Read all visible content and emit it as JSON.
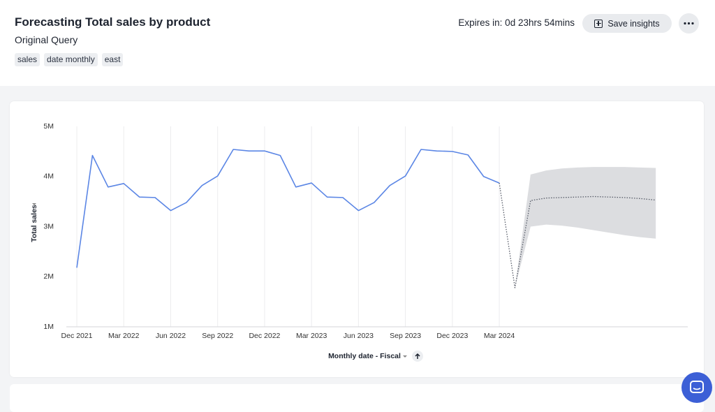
{
  "header": {
    "title": "Forecasting Total sales by product",
    "subtitle": "Original Query",
    "chips": [
      "sales",
      "date monthly",
      "east"
    ],
    "expires": "Expires in: 0d 23hrs 54mins",
    "save_button": "Save insights"
  },
  "chart_data": {
    "type": "line",
    "ylabel": "Total sales",
    "xlabel": "Monthly date - Fiscal",
    "categories": [
      "Dec 2021",
      null,
      null,
      "Mar 2022",
      null,
      null,
      "Jun 2022",
      null,
      null,
      "Sep 2022",
      null,
      null,
      "Dec 2022",
      null,
      null,
      "Mar 2023",
      null,
      null,
      "Jun 2023",
      null,
      null,
      "Sep 2023",
      null,
      null,
      "Dec 2023",
      null,
      null,
      "Mar 2024",
      null,
      null,
      null,
      null,
      null,
      null,
      null,
      null,
      null,
      null
    ],
    "series": [
      {
        "color": "#5b86e5",
        "style": "solid",
        "values": [
          2180000,
          4420000,
          3790000,
          3860000,
          3590000,
          3580000,
          3320000,
          3480000,
          3820000,
          4010000,
          4540000,
          4510000,
          4510000,
          4420000,
          3790000,
          3870000,
          3590000,
          3580000,
          3320000,
          3480000,
          3820000,
          4010000,
          4540000,
          4510000,
          4500000,
          4430000,
          4000000,
          3870000,
          null,
          null,
          null,
          null,
          null,
          null,
          null,
          null,
          null,
          null
        ]
      },
      {
        "color": "#555a66",
        "style": "dotted",
        "values": [
          null,
          null,
          null,
          null,
          null,
          null,
          null,
          null,
          null,
          null,
          null,
          null,
          null,
          null,
          null,
          null,
          null,
          null,
          null,
          null,
          null,
          null,
          null,
          null,
          null,
          null,
          null,
          3870000,
          1780000,
          3520000,
          3570000,
          3580000,
          3590000,
          3600000,
          3590000,
          3580000,
          3560000,
          3530000
        ]
      }
    ],
    "band": {
      "color": "#dcdde0",
      "upper": [
        null,
        null,
        null,
        null,
        null,
        null,
        null,
        null,
        null,
        null,
        null,
        null,
        null,
        null,
        null,
        null,
        null,
        null,
        null,
        null,
        null,
        null,
        null,
        null,
        null,
        null,
        null,
        null,
        1780000,
        4040000,
        4120000,
        4160000,
        4180000,
        4190000,
        4190000,
        4190000,
        4180000,
        4170000
      ],
      "lower": [
        null,
        null,
        null,
        null,
        null,
        null,
        null,
        null,
        null,
        null,
        null,
        null,
        null,
        null,
        null,
        null,
        null,
        null,
        null,
        null,
        null,
        null,
        null,
        null,
        null,
        null,
        null,
        null,
        1780000,
        3000000,
        3040000,
        3020000,
        2980000,
        2930000,
        2880000,
        2830000,
        2790000,
        2760000
      ]
    },
    "ylim": [
      1000000,
      5000000
    ],
    "yticks": [
      {
        "value": 1000000,
        "label": "1M"
      },
      {
        "value": 2000000,
        "label": "2M"
      },
      {
        "value": 3000000,
        "label": "3M"
      },
      {
        "value": 4000000,
        "label": "4M"
      },
      {
        "value": 5000000,
        "label": "5M"
      }
    ],
    "grid": "x"
  }
}
